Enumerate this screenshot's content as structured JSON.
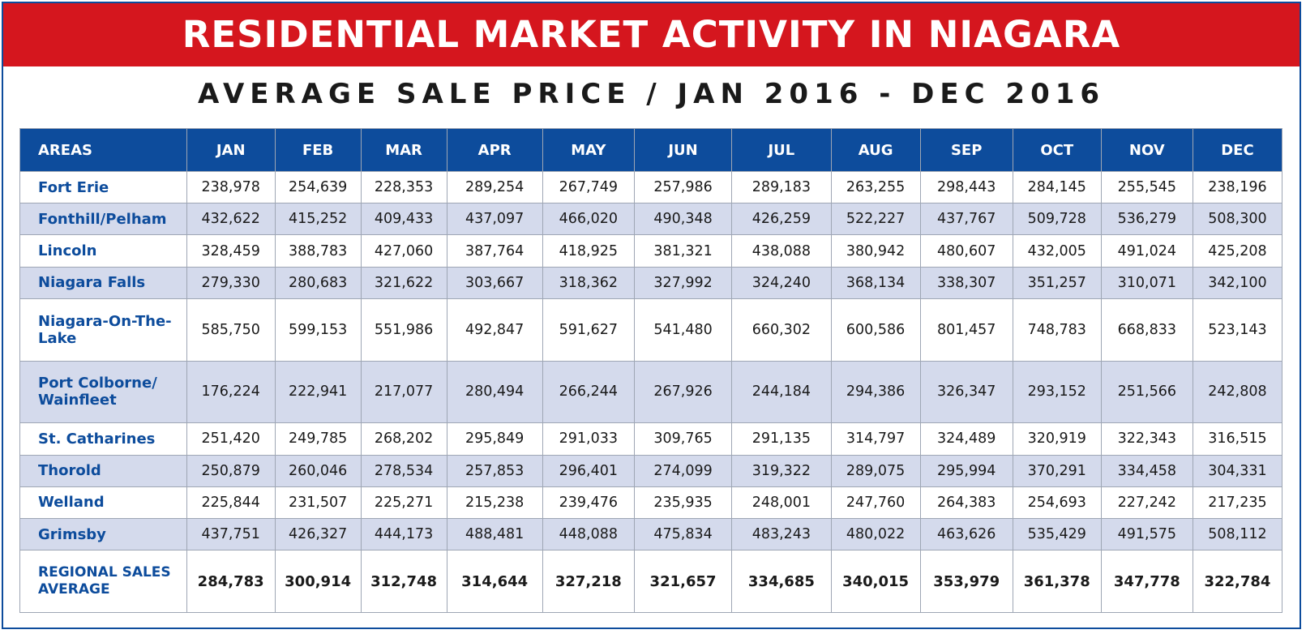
{
  "title": "RESIDENTIAL MARKET ACTIVITY IN NIAGARA",
  "subtitle": "AVERAGE SALE PRICE / JAN 2016 - DEC 2016",
  "colors": {
    "banner": "#d5161e",
    "header": "#0d4c9c",
    "row_alt": "#d4daec",
    "area_text": "#0d4c9c"
  },
  "chart_data": {
    "type": "table",
    "title": "AVERAGE SALE PRICE / JAN 2016 - DEC 2016",
    "columns": [
      "AREAS",
      "JAN",
      "FEB",
      "MAR",
      "APR",
      "MAY",
      "JUN",
      "JUL",
      "AUG",
      "SEP",
      "OCT",
      "NOV",
      "DEC"
    ],
    "rows": [
      {
        "area": "Fort Erie",
        "values": [
          "238,978",
          "254,639",
          "228,353",
          "289,254",
          "267,749",
          "257,986",
          "289,183",
          "263,255",
          "298,443",
          "284,145",
          "255,545",
          "238,196"
        ]
      },
      {
        "area": "Fonthill/Pelham",
        "values": [
          "432,622",
          "415,252",
          "409,433",
          "437,097",
          "466,020",
          "490,348",
          "426,259",
          "522,227",
          "437,767",
          "509,728",
          "536,279",
          "508,300"
        ]
      },
      {
        "area": "Lincoln",
        "values": [
          "328,459",
          "388,783",
          "427,060",
          "387,764",
          "418,925",
          "381,321",
          "438,088",
          "380,942",
          "480,607",
          "432,005",
          "491,024",
          "425,208"
        ]
      },
      {
        "area": "Niagara Falls",
        "values": [
          "279,330",
          "280,683",
          "321,622",
          "303,667",
          "318,362",
          "327,992",
          "324,240",
          "368,134",
          "338,307",
          "351,257",
          "310,071",
          "342,100"
        ]
      },
      {
        "area": "Niagara-On-The-Lake",
        "values": [
          "585,750",
          "599,153",
          "551,986",
          "492,847",
          "591,627",
          "541,480",
          "660,302",
          "600,586",
          "801,457",
          "748,783",
          "668,833",
          "523,143"
        ]
      },
      {
        "area": "Port Colborne/ Wainfleet",
        "values": [
          "176,224",
          "222,941",
          "217,077",
          "280,494",
          "266,244",
          "267,926",
          "244,184",
          "294,386",
          "326,347",
          "293,152",
          "251,566",
          "242,808"
        ]
      },
      {
        "area": "St. Catharines",
        "values": [
          "251,420",
          "249,785",
          "268,202",
          "295,849",
          "291,033",
          "309,765",
          "291,135",
          "314,797",
          "324,489",
          "320,919",
          "322,343",
          "316,515"
        ]
      },
      {
        "area": "Thorold",
        "values": [
          "250,879",
          "260,046",
          "278,534",
          "257,853",
          "296,401",
          "274,099",
          "319,322",
          "289,075",
          "295,994",
          "370,291",
          "334,458",
          "304,331"
        ]
      },
      {
        "area": "Welland",
        "values": [
          "225,844",
          "231,507",
          "225,271",
          "215,238",
          "239,476",
          "235,935",
          "248,001",
          "247,760",
          "264,383",
          "254,693",
          "227,242",
          "217,235"
        ]
      },
      {
        "area": "Grimsby",
        "values": [
          "437,751",
          "426,327",
          "444,173",
          "488,481",
          "448,088",
          "475,834",
          "483,243",
          "480,022",
          "463,626",
          "535,429",
          "491,575",
          "508,112"
        ]
      }
    ],
    "total": {
      "area": "REGIONAL SALES AVERAGE",
      "values": [
        "284,783",
        "300,914",
        "312,748",
        "314,644",
        "327,218",
        "321,657",
        "334,685",
        "340,015",
        "353,979",
        "361,378",
        "347,778",
        "322,784"
      ]
    }
  }
}
